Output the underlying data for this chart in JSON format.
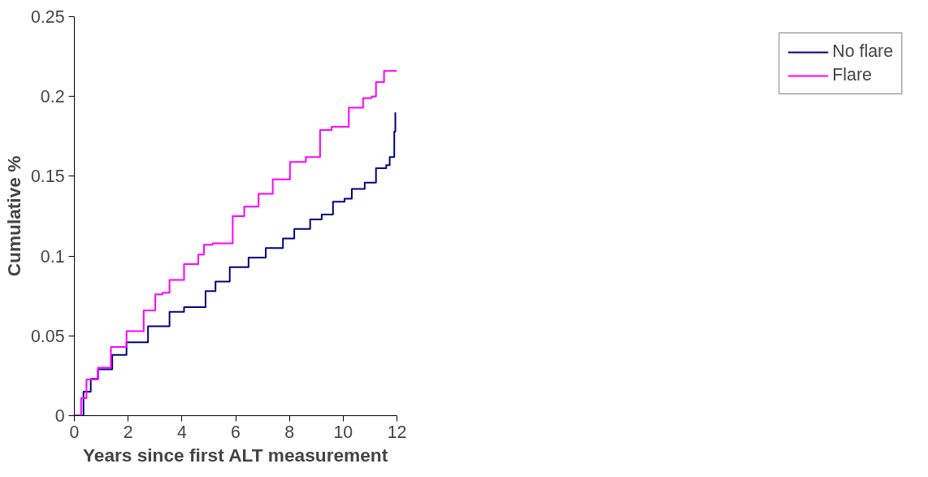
{
  "chart_data": {
    "type": "step",
    "xlabel": "Years since first ALT measurement",
    "ylabel": "Cumulative %",
    "xlim": [
      0,
      12
    ],
    "ylim": [
      0,
      0.25
    ],
    "xticks": [
      0,
      2,
      4,
      6,
      8,
      10,
      12
    ],
    "yticks": [
      0,
      0.05,
      0.1,
      0.15,
      0.2,
      0.25
    ],
    "legend": "right",
    "series": [
      {
        "name": "No flare",
        "color": "#000080",
        "x": [
          0,
          0.34,
          0.61,
          0.88,
          1.41,
          1.94,
          2.74,
          3.54,
          4.08,
          4.88,
          5.25,
          5.78,
          6.48,
          7.12,
          7.76,
          8.18,
          8.77,
          9.2,
          9.62,
          10.05,
          10.32,
          10.8,
          11.22,
          11.6,
          11.73,
          11.87,
          11.9,
          11.94
        ],
        "values": [
          0,
          0.015,
          0.023,
          0.029,
          0.038,
          0.046,
          0.056,
          0.065,
          0.068,
          0.078,
          0.084,
          0.093,
          0.099,
          0.105,
          0.111,
          0.117,
          0.123,
          0.126,
          0.134,
          0.136,
          0.142,
          0.146,
          0.155,
          0.157,
          0.162,
          0.162,
          0.178,
          0.19
        ]
      },
      {
        "name": "Flare",
        "color": "#ff00ff",
        "x": [
          0,
          0.25,
          0.45,
          0.88,
          1.36,
          1.94,
          2.58,
          3.01,
          3.28,
          3.54,
          4.08,
          4.61,
          4.82,
          5.14,
          5.89,
          6.32,
          6.85,
          7.38,
          8.02,
          8.61,
          9.14,
          9.57,
          10.21,
          10.74,
          11.06,
          11.22,
          11.52,
          12
        ],
        "values": [
          0,
          0.011,
          0.0226,
          0.03,
          0.043,
          0.053,
          0.066,
          0.076,
          0.077,
          0.085,
          0.095,
          0.101,
          0.107,
          0.108,
          0.125,
          0.131,
          0.139,
          0.148,
          0.159,
          0.162,
          0.179,
          0.181,
          0.193,
          0.199,
          0.2,
          0.209,
          0.216,
          0.216
        ]
      }
    ]
  }
}
